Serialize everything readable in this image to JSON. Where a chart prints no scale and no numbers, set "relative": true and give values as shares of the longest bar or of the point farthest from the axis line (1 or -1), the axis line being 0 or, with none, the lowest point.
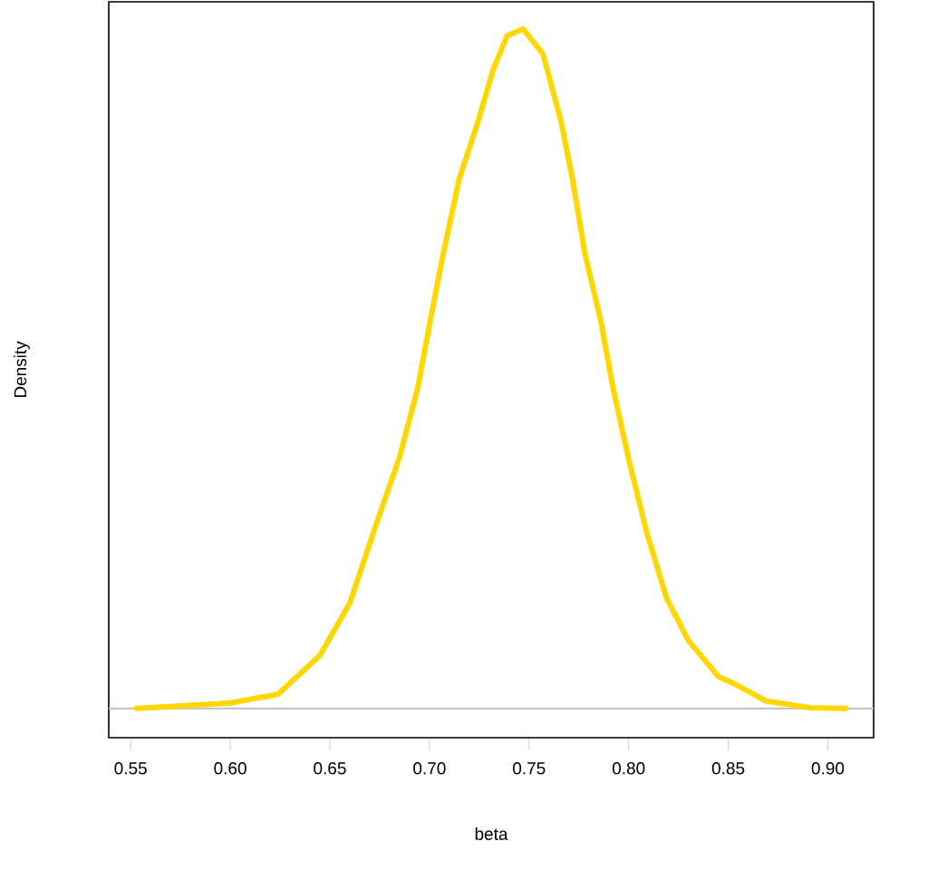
{
  "chart_data": {
    "type": "line",
    "relative": true,
    "xlabel": "beta",
    "ylabel": "Density",
    "tick_labels": "x",
    "xlim": [
      0.539,
      0.923
    ],
    "xticks": [
      0.55,
      {
        "value": 0.6,
        "label": "0.60"
      },
      0.65,
      {
        "value": 0.7,
        "label": "0.70"
      },
      0.75,
      {
        "value": 0.8,
        "label": "0.80"
      },
      0.85,
      {
        "value": 0.9,
        "label": "0.90"
      }
    ],
    "ref_lines": [
      {
        "axis": "y",
        "value": 0,
        "color": "#bebebe"
      }
    ],
    "series": [
      {
        "color": "#ffd700",
        "x": [
          0.553,
          0.6,
          0.624,
          0.645,
          0.66,
          0.672,
          0.685,
          0.694,
          0.701,
          0.707,
          0.715,
          0.724,
          0.732,
          0.739,
          0.747,
          0.757,
          0.766,
          0.772,
          0.778,
          0.786,
          0.792,
          0.8,
          0.809,
          0.819,
          0.83,
          0.845,
          0.854,
          0.869,
          0.891,
          0.909
        ],
        "values": [
          0,
          0.008,
          0.021,
          0.078,
          0.155,
          0.26,
          0.37,
          0.47,
          0.58,
          0.67,
          0.78,
          0.86,
          0.94,
          0.99,
          1.0,
          0.963,
          0.865,
          0.776,
          0.67,
          0.571,
          0.474,
          0.367,
          0.26,
          0.163,
          0.1,
          0.047,
          0.035,
          0.011,
          0.001,
          0
        ]
      }
    ]
  }
}
